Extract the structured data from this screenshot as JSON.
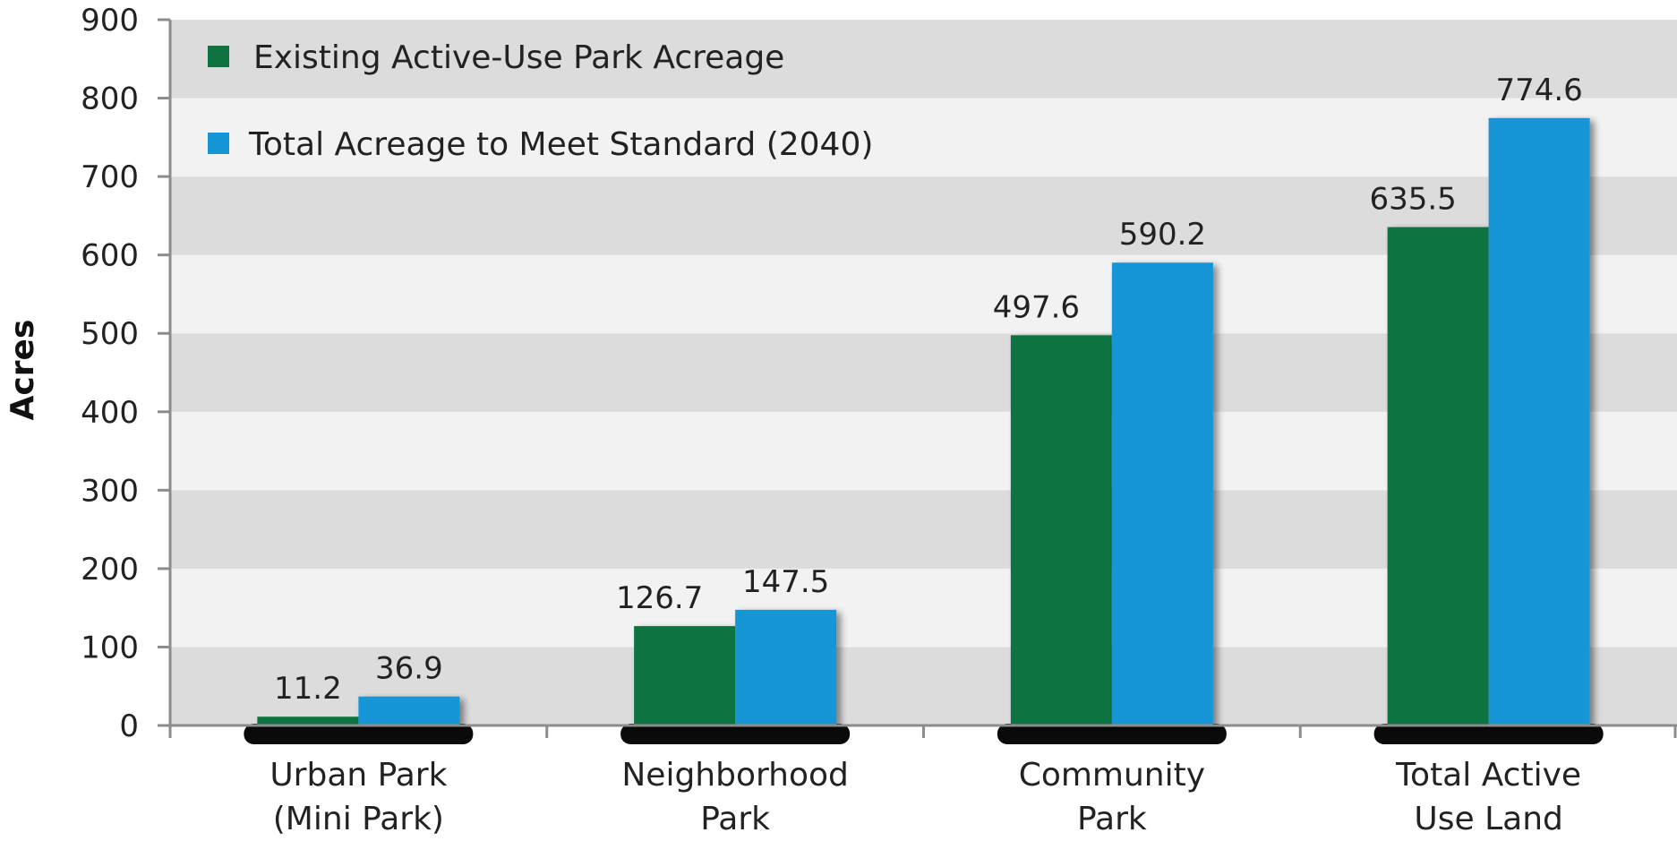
{
  "chart_data": {
    "type": "bar",
    "title": "",
    "xlabel": "",
    "ylabel": "Acres",
    "ylim": [
      0,
      900
    ],
    "yticks": [
      0,
      100,
      200,
      300,
      400,
      500,
      600,
      700,
      800,
      900
    ],
    "categories": [
      [
        "Urban Park",
        "(Mini Park)"
      ],
      [
        "Neighborhood",
        "Park"
      ],
      [
        "Community",
        "Park"
      ],
      [
        "Total Active",
        "Use Land"
      ]
    ],
    "series": [
      {
        "name": "Existing Active-Use Park Acreage",
        "color": "#0e7340",
        "values": [
          11.2,
          126.7,
          497.6,
          635.5
        ],
        "labels": [
          "11.2",
          "126.7",
          "497.6",
          "635.5"
        ]
      },
      {
        "name": "Total Acreage to Meet Standard (2040)",
        "color": "#1796d6",
        "values": [
          36.9,
          147.5,
          590.2,
          774.6
        ],
        "labels": [
          "36.9",
          "147.5",
          "590.2",
          "774.6"
        ]
      }
    ],
    "legend_position": "top-left",
    "grid": "alternating-bands"
  }
}
